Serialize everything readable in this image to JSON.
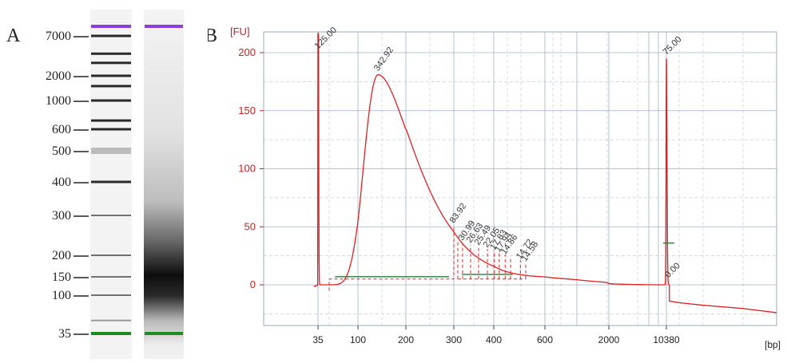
{
  "panel_labels": {
    "a": "A",
    "b": "B"
  },
  "colors": {
    "upper_marker": "#8a3ee0",
    "lower_marker": "#1f8a1f",
    "trace": "#e02020",
    "axis_text": "#cc1f1f",
    "grid_major": "#9fb1c8",
    "grid_minor": "#c2ccd8",
    "baseline": "#2a7a3a"
  },
  "gel": {
    "ladder_labels": [
      "7000",
      "2000",
      "1000",
      "600",
      "500",
      "400",
      "300",
      "200",
      "150",
      "100",
      "35"
    ],
    "ladder_sizes_bp": [
      10380,
      7000,
      4000,
      3000,
      2000,
      1500,
      1000,
      700,
      600,
      500,
      400,
      300,
      200,
      150,
      100,
      50,
      35
    ],
    "sample_smear_peak_bp": 142,
    "upper_marker_bp": 10380,
    "lower_marker_bp": 35
  },
  "chart_data": {
    "type": "line",
    "title": "",
    "xlabel": "[bp]",
    "ylabel": "[FU]",
    "ylim": [
      -35,
      205
    ],
    "y_ticks": [
      0,
      50,
      100,
      150,
      200
    ],
    "x_tick_labels": [
      "35",
      "100",
      "200",
      "300",
      "400",
      "600",
      "2000",
      "10380"
    ],
    "grid": true,
    "peak_labels": [
      {
        "label": "125.00",
        "bp": 35,
        "fu": 200,
        "color": "green"
      },
      {
        "label": "342.92",
        "bp": 142,
        "fu": 181,
        "color": "dark"
      },
      {
        "label": "83.92",
        "bp": 300,
        "fu": 50,
        "color": "dark"
      },
      {
        "label": "30.99",
        "bp": 322,
        "fu": 35,
        "color": "dark"
      },
      {
        "label": "26.63",
        "bp": 342,
        "fu": 33,
        "color": "dark"
      },
      {
        "label": "25.49",
        "bp": 362,
        "fu": 31,
        "color": "dark"
      },
      {
        "label": "22.05",
        "bp": 384,
        "fu": 29,
        "color": "dark"
      },
      {
        "label": "17.83",
        "bp": 402,
        "fu": 27,
        "color": "dark"
      },
      {
        "label": "17.94",
        "bp": 420,
        "fu": 25,
        "color": "dark"
      },
      {
        "label": "14.86",
        "bp": 442,
        "fu": 23,
        "color": "dark"
      },
      {
        "label": "14.72",
        "bp": 498,
        "fu": 19,
        "color": "dark"
      },
      {
        "label": "14.58",
        "bp": 520,
        "fu": 17,
        "color": "dark"
      },
      {
        "label": "75.00",
        "bp": 10380,
        "fu": 195,
        "color": "purple"
      },
      {
        "label": "0.00",
        "bp": 10800,
        "fu": 3,
        "color": "dark"
      }
    ]
  }
}
